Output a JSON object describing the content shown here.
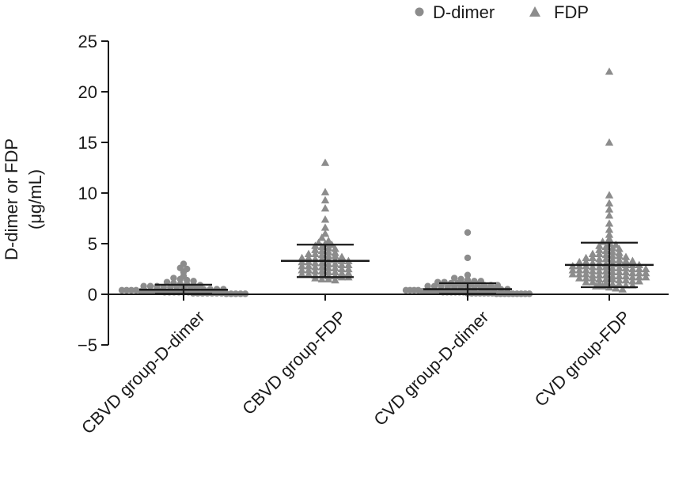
{
  "chart_data": {
    "type": "scatter",
    "ylabel_line1": "D-dimer or FDP",
    "ylabel_line2": "(μg/mL)",
    "ylim": [
      -5,
      25
    ],
    "yticks": [
      {
        "value": -5,
        "label": "−5"
      },
      {
        "value": 0,
        "label": "0"
      },
      {
        "value": 5,
        "label": "5"
      },
      {
        "value": 10,
        "label": "10"
      },
      {
        "value": 15,
        "label": "15"
      },
      {
        "value": 20,
        "label": "20"
      },
      {
        "value": 25,
        "label": "25"
      }
    ],
    "categories": [
      "CBVD group-D-dimer",
      "CBVD group-FDP",
      "CVD group-D-dimer",
      "CVD group-FDP"
    ],
    "legend": [
      {
        "name": "D-dimer",
        "marker": "circle"
      },
      {
        "name": "FDP",
        "marker": "triangle"
      }
    ],
    "legend_position": "top-right",
    "marker_color": "#8c8c8c",
    "line_color": "#1a1a1a",
    "groups": [
      {
        "category": "CBVD group-D-dimer",
        "marker": "circle",
        "mean": 0.45,
        "sd_low": 0.05,
        "sd_high": 0.95,
        "values": [
          3.0,
          2.6,
          2.5,
          2.2,
          1.8,
          1.6,
          1.5,
          1.4,
          1.3,
          1.2,
          1.1,
          1.0,
          1.0,
          0.9,
          0.9,
          0.8,
          0.8,
          0.8,
          0.7,
          0.7,
          0.7,
          0.6,
          0.6,
          0.6,
          0.5,
          0.5,
          0.5,
          0.5,
          0.4,
          0.4,
          0.4,
          0.4,
          0.3,
          0.3,
          0.3,
          0.3,
          0.3,
          0.2,
          0.2,
          0.2,
          0.2,
          0.2,
          0.2,
          0.1,
          0.1,
          0.1,
          0.1,
          0.1,
          0.1,
          0.1,
          0.05,
          0.05,
          0.05,
          0.05,
          0.05
        ]
      },
      {
        "category": "CBVD group-FDP",
        "marker": "triangle",
        "mean": 3.3,
        "sd_low": 1.7,
        "sd_high": 4.9,
        "values": [
          13.0,
          10.1,
          9.3,
          8.5,
          7.4,
          6.6,
          6.0,
          5.6,
          5.3,
          5.1,
          5.0,
          4.9,
          4.8,
          4.7,
          4.6,
          4.5,
          4.4,
          4.3,
          4.2,
          4.1,
          4.0,
          4.0,
          3.9,
          3.8,
          3.8,
          3.7,
          3.6,
          3.6,
          3.5,
          3.5,
          3.4,
          3.4,
          3.3,
          3.3,
          3.2,
          3.2,
          3.1,
          3.1,
          3.0,
          3.0,
          2.9,
          2.9,
          2.8,
          2.8,
          2.7,
          2.7,
          2.6,
          2.6,
          2.5,
          2.5,
          2.4,
          2.4,
          2.3,
          2.3,
          2.2,
          2.2,
          2.1,
          2.1,
          2.0,
          2.0,
          1.9,
          1.9,
          1.8,
          1.8,
          1.7,
          1.7,
          1.6,
          1.5,
          1.5,
          1.4
        ]
      },
      {
        "category": "CVD group-D-dimer",
        "marker": "circle",
        "mean": 0.5,
        "sd_low": 0.05,
        "sd_high": 1.1,
        "values": [
          6.1,
          3.6,
          1.9,
          1.6,
          1.5,
          1.4,
          1.3,
          1.3,
          1.2,
          1.2,
          1.1,
          1.1,
          1.0,
          1.0,
          1.0,
          0.9,
          0.9,
          0.9,
          0.8,
          0.8,
          0.8,
          0.7,
          0.7,
          0.7,
          0.6,
          0.6,
          0.6,
          0.5,
          0.5,
          0.5,
          0.5,
          0.4,
          0.4,
          0.4,
          0.4,
          0.3,
          0.3,
          0.3,
          0.3,
          0.3,
          0.2,
          0.2,
          0.2,
          0.2,
          0.2,
          0.2,
          0.1,
          0.1,
          0.1,
          0.1,
          0.1,
          0.1,
          0.1,
          0.05,
          0.05,
          0.05,
          0.05,
          0.05,
          0.05,
          0.05,
          0.05,
          0.05
        ]
      },
      {
        "category": "CVD group-FDP",
        "marker": "triangle",
        "mean": 2.9,
        "sd_low": 0.7,
        "sd_high": 5.1,
        "values": [
          22.0,
          15.0,
          9.8,
          9.0,
          8.4,
          7.8,
          7.0,
          6.4,
          5.9,
          5.5,
          5.2,
          5.0,
          4.9,
          4.8,
          4.7,
          4.6,
          4.5,
          4.4,
          4.3,
          4.2,
          4.1,
          4.0,
          4.0,
          3.9,
          3.8,
          3.8,
          3.7,
          3.6,
          3.6,
          3.5,
          3.5,
          3.4,
          3.4,
          3.3,
          3.3,
          3.2,
          3.2,
          3.1,
          3.1,
          3.0,
          3.0,
          3.0,
          2.9,
          2.9,
          2.9,
          2.8,
          2.8,
          2.8,
          2.7,
          2.7,
          2.7,
          2.6,
          2.6,
          2.6,
          2.5,
          2.5,
          2.5,
          2.4,
          2.4,
          2.4,
          2.3,
          2.3,
          2.3,
          2.2,
          2.2,
          2.2,
          2.1,
          2.1,
          2.1,
          2.0,
          2.0,
          2.0,
          1.9,
          1.9,
          1.9,
          1.8,
          1.8,
          1.8,
          1.7,
          1.7,
          1.7,
          1.6,
          1.6,
          1.6,
          1.5,
          1.5,
          1.5,
          1.4,
          1.4,
          1.3,
          1.3,
          1.2,
          1.2,
          1.1,
          1.1,
          1.0,
          1.0,
          0.9,
          0.9,
          0.8,
          0.8,
          0.7,
          0.6,
          0.5
        ]
      }
    ]
  }
}
